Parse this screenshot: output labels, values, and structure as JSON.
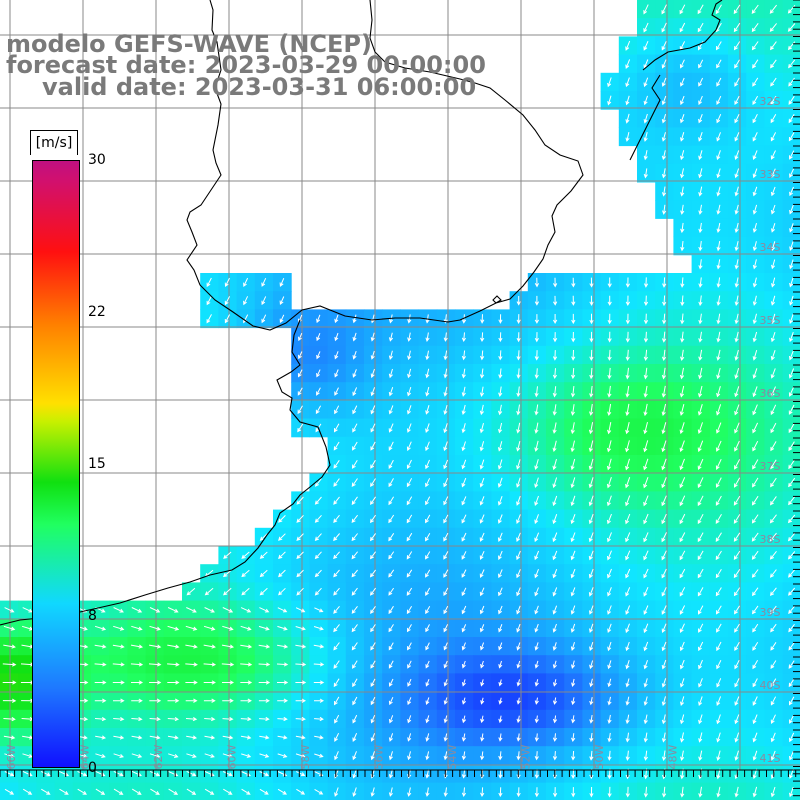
{
  "title": {
    "model": "modelo GEFS-WAVE (NCEP)",
    "forecast_date": "forecast date: 2023-03-29 00:00:00",
    "valid_date": "valid date: 2023-03-31 06:00:00"
  },
  "colorbar": {
    "units": "[m/s]",
    "ticks": [
      "30",
      "22",
      "15",
      "8",
      "0"
    ],
    "tick_values": [
      30,
      22,
      15,
      8,
      0
    ],
    "range": [
      0,
      30
    ],
    "colors": [
      "#1010ff",
      "#1e78ff",
      "#10d8ff",
      "#20ff60",
      "#10e010",
      "#ffe000",
      "#ff8000",
      "#ff1010",
      "#c01080"
    ]
  },
  "map": {
    "lat_labels": [
      "32S",
      "33S",
      "34S",
      "35S",
      "36S",
      "37S",
      "38S",
      "39S",
      "40S",
      "41S"
    ],
    "lon_labels": [
      "66W",
      "64W",
      "62W",
      "60W",
      "58W",
      "56W",
      "54W",
      "52W",
      "50W",
      "48W"
    ],
    "land_color": "#ffffff",
    "grid_color": "#888888",
    "vector_color": "#ffffff"
  }
}
